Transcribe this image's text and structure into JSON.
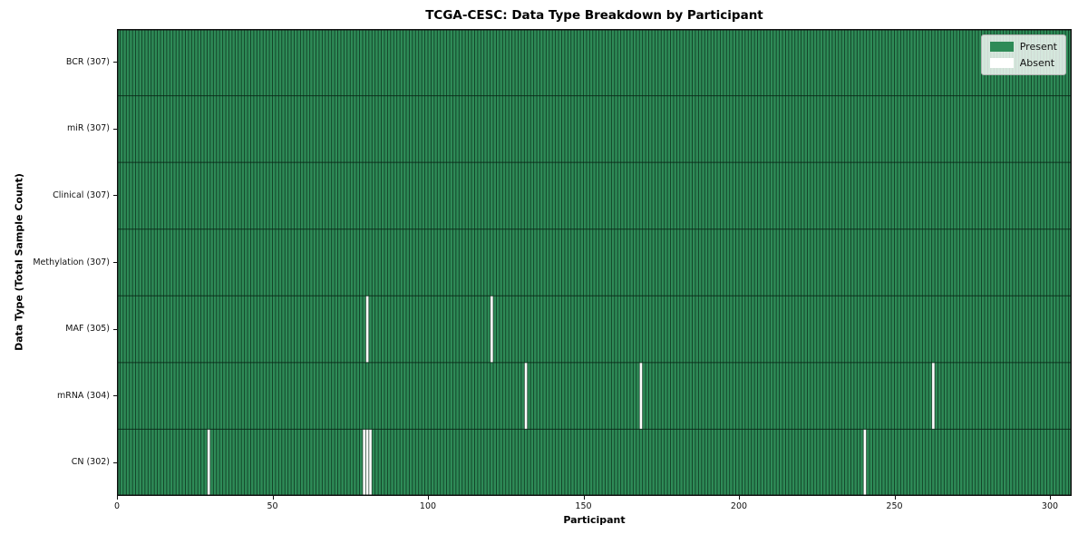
{
  "chart_data": {
    "type": "heatmap",
    "title": "TCGA-CESC: Data Type Breakdown by Participant",
    "xlabel": "Participant",
    "ylabel": "Data Type (Total Sample Count)",
    "n_participants": 307,
    "x_ticks": [
      0,
      50,
      100,
      150,
      200,
      250,
      300
    ],
    "x_range": [
      0,
      307
    ],
    "grid": false,
    "legend_position": "upper right",
    "legend": [
      {
        "label": "Present",
        "color": "#2e8b57"
      },
      {
        "label": "Absent",
        "color": "#ffffff"
      }
    ],
    "rows": [
      {
        "label": "BCR (307)",
        "data_type": "BCR",
        "present_count": 307,
        "absent_participants": []
      },
      {
        "label": "miR (307)",
        "data_type": "miR",
        "present_count": 307,
        "absent_participants": []
      },
      {
        "label": "Clinical (307)",
        "data_type": "Clinical",
        "present_count": 307,
        "absent_participants": []
      },
      {
        "label": "Methylation (307)",
        "data_type": "Methylation",
        "present_count": 307,
        "absent_participants": []
      },
      {
        "label": "MAF (305)",
        "data_type": "MAF",
        "present_count": 305,
        "absent_participants": [
          80,
          120
        ]
      },
      {
        "label": "mRNA (304)",
        "data_type": "mRNA",
        "present_count": 304,
        "absent_participants": [
          131,
          168,
          262
        ]
      },
      {
        "label": "CN (302)",
        "data_type": "CN",
        "present_count": 302,
        "absent_participants": [
          29,
          79,
          80,
          81,
          240
        ]
      }
    ],
    "colors": {
      "present": "#2e8b57",
      "absent": "#ffffff",
      "cell_edge": "rgba(8,38,22,0.75)",
      "row_edge": "rgba(8,38,22,0.85)",
      "spine": "#111111"
    }
  }
}
